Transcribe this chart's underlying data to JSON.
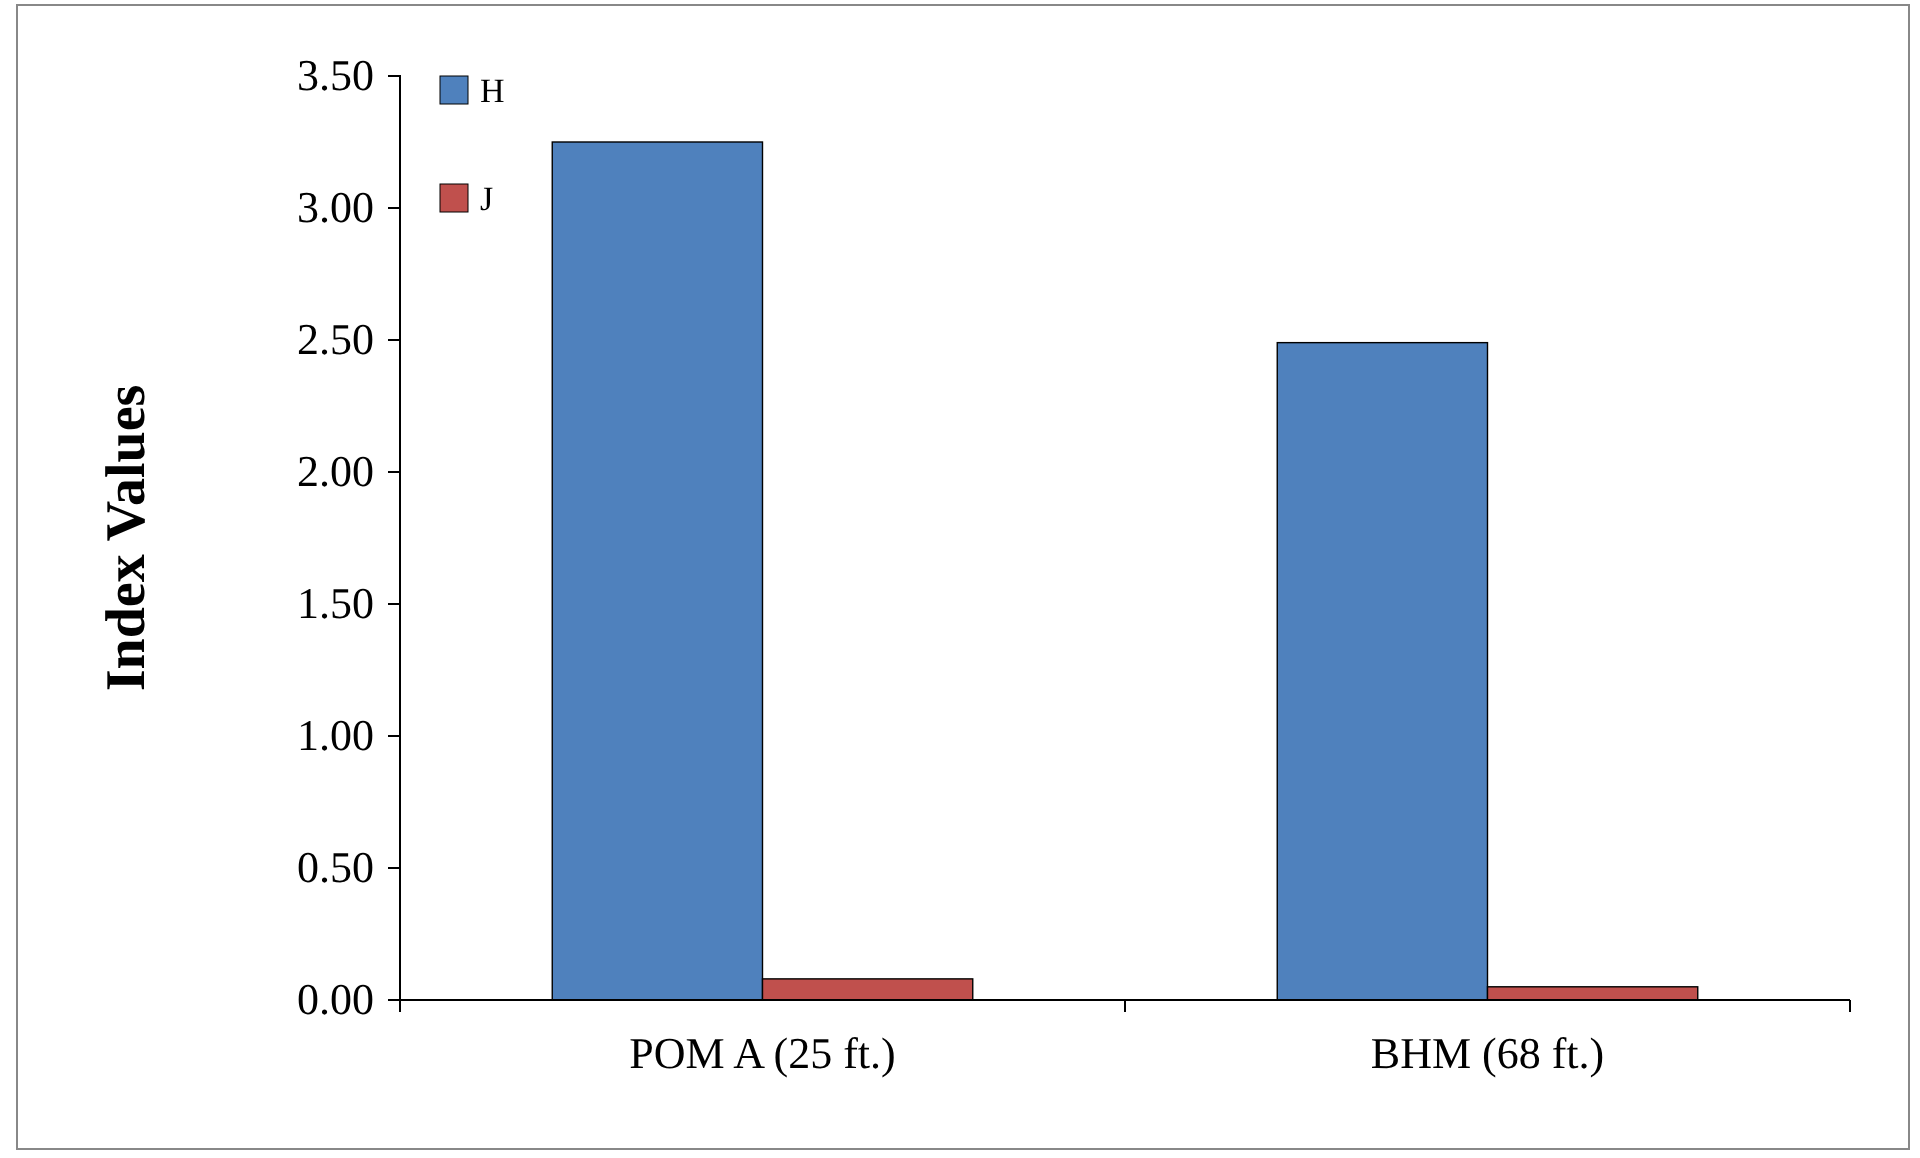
{
  "chart_data": {
    "type": "bar",
    "ylabel": "Index Values",
    "categories": [
      "POM A (25 ft.)",
      "BHM (68 ft.)"
    ],
    "series": [
      {
        "name": "H",
        "color": "#4f81bd",
        "values": [
          3.25,
          2.49
        ]
      },
      {
        "name": "J",
        "color": "#c0504d",
        "values": [
          0.08,
          0.05
        ]
      }
    ],
    "ylim": [
      0,
      3.5
    ],
    "yticks": [
      {
        "value": 0,
        "label": "0.00"
      },
      {
        "value": 0.5,
        "label": "0.50"
      },
      {
        "value": 1,
        "label": "1.00"
      },
      {
        "value": 1.5,
        "label": "1.50"
      },
      {
        "value": 2,
        "label": "2.00"
      },
      {
        "value": 2.5,
        "label": "2.50"
      },
      {
        "value": 3,
        "label": "3.00"
      },
      {
        "value": 3.5,
        "label": "3.50"
      }
    ],
    "grid": false,
    "legend": "top left"
  }
}
